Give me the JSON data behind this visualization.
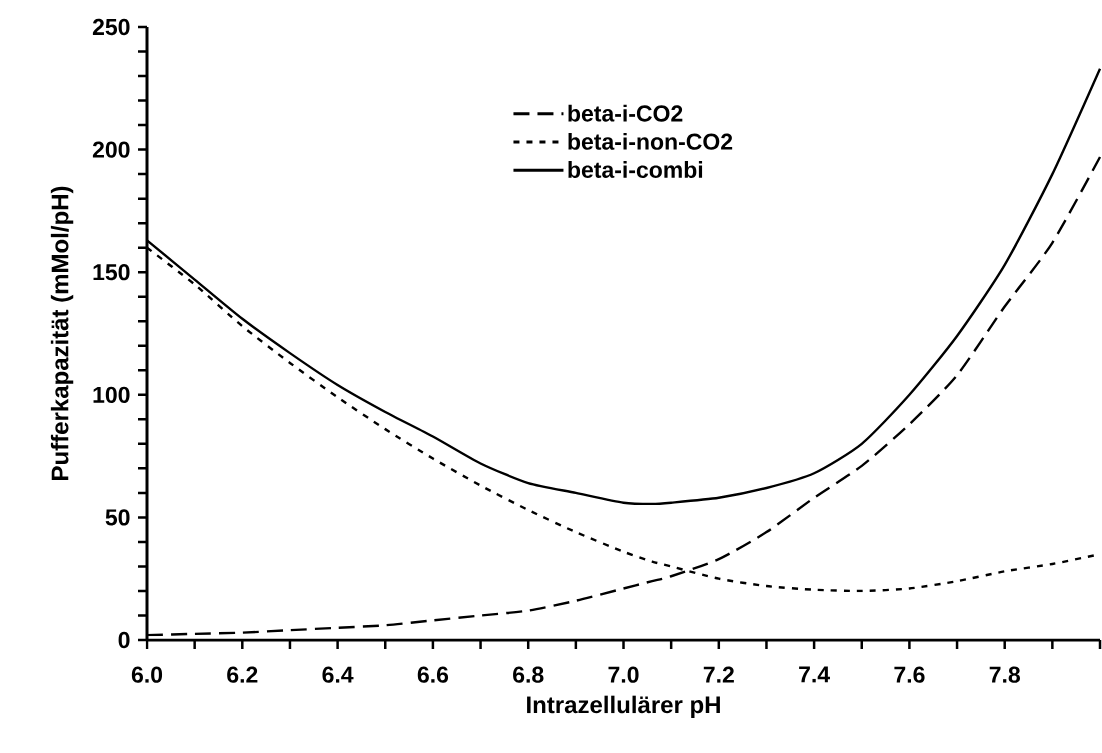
{
  "chart_data": {
    "type": "line",
    "xlabel": "Intrazellulärer pH",
    "ylabel": "Pufferkapazität (mMol/pH)",
    "xlim": [
      6.0,
      8.0
    ],
    "ylim": [
      0,
      250
    ],
    "xticks": [
      {
        "value": 6.0,
        "label": "6.0"
      },
      {
        "value": 6.1,
        "label": null
      },
      6.2,
      {
        "value": 6.3,
        "label": null
      },
      6.4,
      {
        "value": 6.5,
        "label": null
      },
      6.6,
      {
        "value": 6.7,
        "label": null
      },
      6.8,
      {
        "value": 6.9,
        "label": null
      },
      {
        "value": 7.0,
        "label": "7.0"
      },
      {
        "value": 7.1,
        "label": null
      },
      7.2,
      {
        "value": 7.3,
        "label": null
      },
      7.4,
      {
        "value": 7.5,
        "label": null
      },
      7.6,
      {
        "value": 7.7,
        "label": null
      },
      7.8,
      {
        "value": 7.9,
        "label": null
      },
      {
        "value": 8.0,
        "label": null
      }
    ],
    "yticks": [
      0,
      {
        "value": 10,
        "label": null
      },
      {
        "value": 20,
        "label": null
      },
      {
        "value": 30,
        "label": null
      },
      {
        "value": 40,
        "label": null
      },
      50,
      {
        "value": 60,
        "label": null
      },
      {
        "value": 70,
        "label": null
      },
      {
        "value": 80,
        "label": null
      },
      {
        "value": 90,
        "label": null
      },
      100,
      {
        "value": 110,
        "label": null
      },
      {
        "value": 120,
        "label": null
      },
      {
        "value": 130,
        "label": null
      },
      {
        "value": 140,
        "label": null
      },
      150,
      {
        "value": 160,
        "label": null
      },
      {
        "value": 170,
        "label": null
      },
      {
        "value": 180,
        "label": null
      },
      {
        "value": 190,
        "label": null
      },
      200,
      {
        "value": 210,
        "label": null
      },
      {
        "value": 220,
        "label": null
      },
      {
        "value": 230,
        "label": null
      },
      {
        "value": 240,
        "label": null
      },
      250
    ],
    "grid": false,
    "legend": "top",
    "marker": "none",
    "x": [
      6.0,
      6.1,
      6.2,
      6.3,
      6.4,
      6.5,
      6.6,
      6.7,
      6.8,
      6.9,
      7.0,
      7.06,
      7.1,
      7.2,
      7.3,
      7.4,
      7.5,
      7.6,
      7.7,
      7.8,
      7.9,
      8.0
    ],
    "series": [
      {
        "name": "beta-i-CO2",
        "color": "#000000",
        "line_style": "dashed",
        "values": [
          2,
          2.5,
          3,
          4,
          5,
          6,
          8,
          10,
          12,
          16,
          21,
          24,
          26,
          33,
          44,
          58,
          71,
          88,
          108,
          136,
          162,
          197
        ]
      },
      {
        "name": "beta-i-non-CO2",
        "color": "#000000",
        "line_style": "dotted",
        "values": [
          160,
          145,
          128,
          113,
          99,
          86,
          74,
          63,
          53,
          44,
          36,
          32,
          30,
          25,
          22,
          20.5,
          20,
          21,
          24,
          28,
          31,
          35
        ]
      },
      {
        "name": "beta-i-combi",
        "color": "#000000",
        "line_style": "solid",
        "values": [
          163,
          147,
          131,
          117,
          104,
          93,
          83,
          72,
          64,
          60,
          56,
          55.5,
          56,
          58,
          62,
          68,
          80,
          100,
          124,
          153,
          190,
          233
        ]
      }
    ]
  }
}
